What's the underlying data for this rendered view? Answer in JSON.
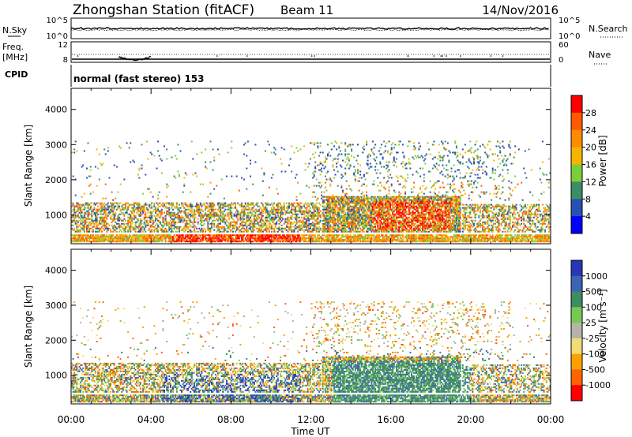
{
  "header": {
    "station": "Zhongshan Station (fitACF)",
    "beam": "Beam 11",
    "date": "14/Nov/2016"
  },
  "panels": {
    "noise": {
      "left_label": "N.Sky",
      "right_label": "N.Search",
      "left_ticks": [
        "10^5",
        "10^0"
      ],
      "right_ticks": [
        "10^5",
        "10^0"
      ]
    },
    "freq": {
      "left_label": "Freq.",
      "left_unit": "[MHz]",
      "right_label": "Nave",
      "left_ticks": [
        "12",
        "8"
      ],
      "right_ticks": [
        "60",
        "0"
      ]
    },
    "cpid": {
      "label": "CPID",
      "text": "normal (fast stereo) 153"
    }
  },
  "colorbars": {
    "power": {
      "label": "Power [dB]",
      "ticks": [
        "28",
        "24",
        "20",
        "16",
        "12",
        "8",
        "4"
      ],
      "colors": [
        "#ff0000",
        "#ff5a00",
        "#ff8c00",
        "#f5b400",
        "#7ccd3c",
        "#3c8c64",
        "#2850b4",
        "#0000ff"
      ]
    },
    "velocity": {
      "label": "Velocity [m s⁻¹]",
      "ticks": [
        "1000",
        "500",
        "100",
        "25",
        "-25",
        "-100",
        "-500",
        "-1000"
      ],
      "colors": [
        "#2838b4",
        "#3c64b4",
        "#3c8c64",
        "#78c850",
        "#b4b4aa",
        "#f0dc78",
        "#ffa000",
        "#ff6400",
        "#ff0000"
      ]
    }
  },
  "chart_data": [
    {
      "type": "heatmap",
      "name": "Power",
      "ylabel": "Slant Range [km]",
      "xlim": [
        "00:00",
        "24:00"
      ],
      "ylim": [
        180,
        4600
      ],
      "yticks": [
        1000,
        2000,
        3000,
        4000
      ],
      "xticks": [
        "00:00",
        "04:00",
        "08:00",
        "12:00",
        "16:00",
        "20:00",
        "00:00"
      ],
      "colorbar_range": [
        0,
        32
      ]
    },
    {
      "type": "heatmap",
      "name": "Velocity",
      "ylabel": "Slant Range [km]",
      "xlabel": "Time UT",
      "xlim": [
        "00:00",
        "24:00"
      ],
      "ylim": [
        180,
        4600
      ],
      "yticks": [
        1000,
        2000,
        3000,
        4000
      ],
      "xticks": [
        "00:00",
        "04:00",
        "08:00",
        "12:00",
        "16:00",
        "20:00",
        "00:00"
      ],
      "colorbar_range": [
        -1000,
        1000
      ]
    }
  ]
}
